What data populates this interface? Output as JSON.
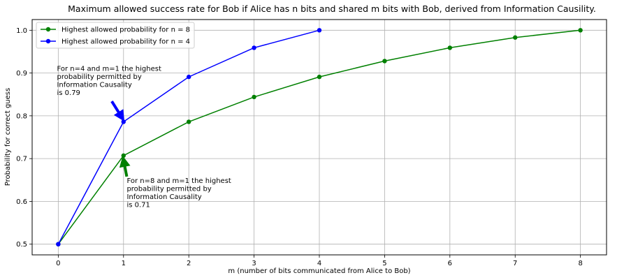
{
  "chart_data": {
    "type": "line",
    "title": "Maximum allowed success rate for Bob if Alice has n bits and shared m bits with Bob, derived from Information Causility.",
    "xlabel": "m (number of bits communicated from Alice to Bob)",
    "ylabel": "Probability for correct guess",
    "xlim": [
      -0.4,
      8.4
    ],
    "ylim": [
      0.475,
      1.025
    ],
    "xticks": [
      0,
      1,
      2,
      3,
      4,
      5,
      6,
      7,
      8
    ],
    "yticks": [
      0.5,
      0.6,
      0.7,
      0.8,
      0.9,
      1.0
    ],
    "ytick_labels": [
      "0.5",
      "0.6",
      "0.7",
      "0.8",
      "0.9",
      "1.0"
    ],
    "grid": true,
    "legend_position": "top-left",
    "series": [
      {
        "name": "Highest allowed probability for n = 8",
        "color": "#008000",
        "x": [
          0,
          1,
          2,
          3,
          4,
          5,
          6,
          7,
          8
        ],
        "values": [
          0.5,
          0.707,
          0.786,
          0.844,
          0.891,
          0.928,
          0.959,
          0.983,
          1.0
        ]
      },
      {
        "name": "Highest allowed probability for n = 4",
        "color": "#0000ff",
        "x": [
          0,
          1,
          2,
          3,
          4
        ],
        "values": [
          0.5,
          0.786,
          0.891,
          0.959,
          1.0
        ]
      }
    ],
    "annotations": [
      {
        "lines": [
          "For n=4 and m=1 the highest",
          "probability permitted by",
          "Information Causality",
          "is 0.79"
        ],
        "text_at": [
          -0.02,
          0.905
        ],
        "arrow_tail": [
          0.82,
          0.834
        ],
        "arrow_head": [
          0.98,
          0.795
        ],
        "color": "#0000ff"
      },
      {
        "lines": [
          "For n=8 and m=1 the highest",
          "probability permitted by",
          "Information Causality",
          "is 0.71"
        ],
        "text_at": [
          1.05,
          0.643
        ],
        "arrow_tail": [
          1.05,
          0.658
        ],
        "arrow_head": [
          1.0,
          0.697
        ],
        "color": "#008000"
      }
    ]
  }
}
